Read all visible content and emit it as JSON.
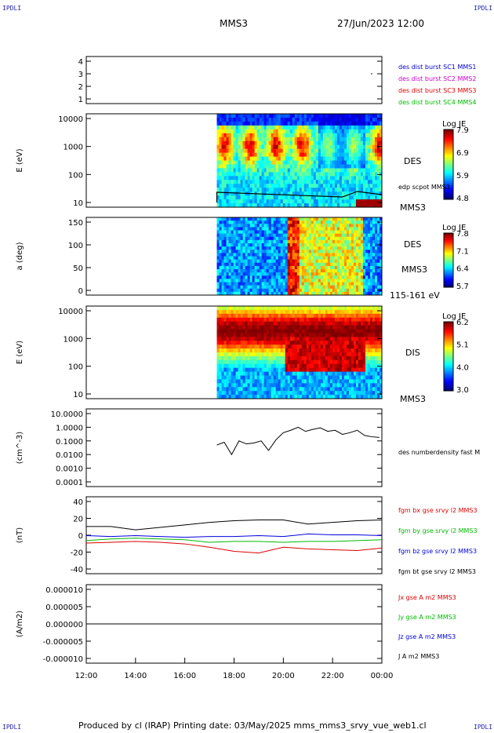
{
  "corners": {
    "tl": "IPDLI",
    "tr": "IPDLI",
    "br": "IPDLI",
    "bl": "IPDLI"
  },
  "header": {
    "spacecraft": "MMS3",
    "datetime": "27/Jun/2023 12:00"
  },
  "footer": {
    "text": "Produced by cl (IRAP)   Printing date: 03/May/2025   mms_mms3_srvy_vue_web1.cl"
  },
  "chart_data": [
    {
      "type": "table",
      "name": "burst",
      "yticks": [
        "4",
        "3",
        "2",
        "1"
      ],
      "legend": [
        {
          "label": "des dist burst SC1 MMS1",
          "color": "#0000cc"
        },
        {
          "label": "des dist burst SC2 MMS2",
          "color": "#cc00cc"
        },
        {
          "label": "des dist burst SC3 MMS3",
          "color": "#dd0000"
        },
        {
          "label": "des dist burst SC4 MMS4",
          "color": "#00bb00"
        }
      ]
    },
    {
      "type": "heatmap",
      "name": "des_energy",
      "ylabel": "E (eV)",
      "yticks": [
        "10000",
        "1000",
        "100",
        "10"
      ],
      "right_labels": [
        "DES",
        "edp scpot MMS3",
        "MMS3"
      ],
      "colorbar": {
        "title": "Log JE",
        "ticks": [
          "7.9",
          "6.9",
          "5.9",
          "4.8"
        ]
      },
      "data_start_hour": 17.3
    },
    {
      "type": "heatmap",
      "name": "des_pitch",
      "ylabel": "a (deg)",
      "yticks": [
        "150",
        "100",
        "50",
        "0"
      ],
      "right_labels": [
        "DES",
        "MMS3",
        "115-161 eV"
      ],
      "colorbar": {
        "title": "Log JE",
        "ticks": [
          "7.8",
          "7.1",
          "6.4",
          "5.7"
        ]
      },
      "data_start_hour": 17.3
    },
    {
      "type": "heatmap",
      "name": "dis_energy",
      "ylabel": "E (eV)",
      "yticks": [
        "10000",
        "1000",
        "100",
        "10"
      ],
      "right_labels": [
        "DIS",
        "MMS3"
      ],
      "colorbar": {
        "title": "Log JE",
        "ticks": [
          "6.2",
          "5.1",
          "4.0",
          "3.0"
        ]
      },
      "data_start_hour": 17.3
    },
    {
      "type": "line",
      "name": "density",
      "ylabel": "(cm^-3)",
      "yticks": [
        "10.0000",
        "1.0000",
        "0.1000",
        "0.0100",
        "0.0010",
        "0.0001"
      ],
      "series_label": "des numberdensity fast M",
      "x": [
        17.3,
        17.6,
        17.9,
        18.2,
        18.5,
        18.8,
        19.1,
        19.4,
        19.7,
        20.0,
        20.3,
        20.6,
        20.9,
        21.2,
        21.5,
        21.8,
        22.1,
        22.4,
        22.7,
        23.0,
        23.3,
        23.6,
        23.9
      ],
      "values": [
        0.05,
        0.08,
        0.01,
        0.1,
        0.06,
        0.07,
        0.1,
        0.02,
        0.12,
        0.4,
        0.6,
        1.0,
        0.5,
        0.7,
        0.9,
        0.5,
        0.6,
        0.3,
        0.4,
        0.6,
        0.25,
        0.2,
        0.18
      ]
    },
    {
      "type": "line",
      "name": "fgm",
      "ylabel": "(nT)",
      "yticks": [
        "40",
        "20",
        "0",
        "-20",
        "-40"
      ],
      "ylim": [
        -45,
        48
      ],
      "series": [
        {
          "name": "fgm bx gse srvy l2 MMS3",
          "color": "#dd0000",
          "x": [
            12,
            13,
            14,
            15,
            16,
            17,
            18,
            19,
            20,
            21,
            22,
            23,
            24
          ],
          "values": [
            -8,
            -7,
            -6,
            -7,
            -9,
            -13,
            -18,
            -20,
            -13,
            -15,
            -16,
            -17,
            -14
          ]
        },
        {
          "name": "fgm by gse srvy l2 MMS3",
          "color": "#00bb00",
          "x": [
            12,
            13,
            14,
            15,
            16,
            17,
            18,
            19,
            20,
            21,
            22,
            23,
            24
          ],
          "values": [
            -5,
            -3,
            -2,
            -3,
            -4,
            -7,
            -6,
            -6,
            -7,
            -6,
            -6,
            -5,
            -4
          ]
        },
        {
          "name": "fgm bz gse srvy l2 MMS3",
          "color": "#0000dd",
          "x": [
            12,
            13,
            14,
            15,
            16,
            17,
            18,
            19,
            20,
            21,
            22,
            23,
            24
          ],
          "values": [
            1,
            0,
            1,
            0,
            -1,
            0,
            0,
            1,
            0,
            3,
            2,
            2,
            1
          ]
        },
        {
          "name": "fgm bt gse srvy l2 MMS3",
          "color": "#000000",
          "x": [
            12,
            13,
            14,
            15,
            16,
            17,
            18,
            19,
            20,
            21,
            22,
            23,
            24
          ],
          "values": [
            12,
            12,
            8,
            11,
            14,
            17,
            19,
            20,
            20,
            15,
            17,
            19,
            20
          ]
        }
      ]
    },
    {
      "type": "line",
      "name": "current",
      "ylabel": "(A/m2)",
      "yticks": [
        "0.000010",
        "0.000005",
        "0.000000",
        "-0.000005",
        "-0.000010"
      ],
      "ylim": [
        -1e-05,
        1e-05
      ],
      "series": [
        {
          "name": "Jx gse A m2 MMS3",
          "color": "#dd0000"
        },
        {
          "name": "Jy gse A m2 MMS3",
          "color": "#00bb00"
        },
        {
          "name": "Jz gse A m2 MMS3",
          "color": "#0000dd"
        },
        {
          "name": "J A m2 MMS3",
          "color": "#000000"
        }
      ]
    }
  ],
  "xaxis": {
    "ticks": [
      "12:00",
      "14:00",
      "16:00",
      "18:00",
      "20:00",
      "22:00",
      "00:00"
    ]
  }
}
